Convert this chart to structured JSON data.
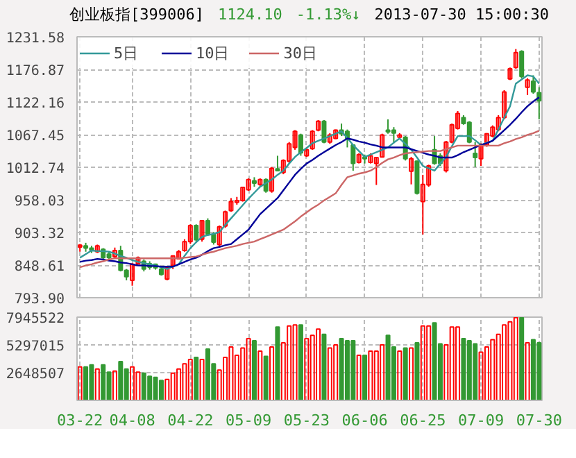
{
  "chart_data": [
    {
      "type": "candlestick",
      "title": "创业板指[399006]",
      "annotations": [
        "1124.10",
        "-1.13%↓",
        "2013-07-30 15:00:30"
      ],
      "categories": [
        null,
        null,
        null,
        null,
        null,
        null,
        null,
        null,
        null,
        null,
        null,
        null,
        null,
        null,
        null,
        null,
        null,
        null,
        null,
        null,
        null,
        null,
        null,
        null,
        null,
        null,
        null,
        null,
        null,
        null,
        null,
        null,
        null,
        null,
        null,
        null,
        null,
        null,
        null,
        null,
        null,
        null,
        null,
        null,
        null,
        null,
        null,
        null,
        null,
        null,
        null,
        null,
        null,
        null,
        null,
        null,
        null,
        null,
        null,
        null,
        null,
        null,
        null,
        null,
        null,
        null,
        null,
        null,
        null,
        null,
        null,
        null,
        null,
        null,
        null,
        null,
        null,
        null,
        null,
        null
      ],
      "ohlc": [
        [
          879,
          884,
          871,
          882
        ],
        [
          881,
          886,
          871,
          877
        ],
        [
          877,
          881,
          869,
          874
        ],
        [
          871,
          883,
          869,
          881
        ],
        [
          875,
          877,
          858,
          861
        ],
        [
          867,
          871,
          858,
          861
        ],
        [
          863,
          878,
          861,
          873
        ],
        [
          873,
          881,
          838,
          840
        ],
        [
          840,
          842,
          823,
          829
        ],
        [
          823,
          852,
          814,
          850
        ],
        [
          851,
          863,
          850,
          861
        ],
        [
          855,
          858,
          838,
          842
        ],
        [
          851,
          855,
          841,
          845
        ],
        [
          850,
          851,
          841,
          844
        ],
        [
          842,
          845,
          831,
          833
        ],
        [
          825,
          846,
          823,
          845
        ],
        [
          848,
          865,
          842,
          864
        ],
        [
          859,
          874,
          858,
          871
        ],
        [
          873,
          892,
          871,
          888
        ],
        [
          888,
          917,
          884,
          915
        ],
        [
          915,
          917,
          888,
          891
        ],
        [
          892,
          924,
          888,
          923
        ],
        [
          923,
          927,
          898,
          900
        ],
        [
          900,
          904,
          883,
          887
        ],
        [
          883,
          915,
          879,
          913
        ],
        [
          914,
          940,
          911,
          938
        ],
        [
          940,
          961,
          938,
          955
        ],
        [
          954,
          963,
          950,
          957
        ],
        [
          957,
          980,
          955,
          979
        ],
        [
          975,
          994,
          973,
          992
        ],
        [
          990,
          996,
          980,
          986
        ],
        [
          984,
          994,
          980,
          992
        ],
        [
          992,
          994,
          970,
          973
        ],
        [
          973,
          1013,
          970,
          1011
        ],
        [
          1010,
          1032,
          1006,
          1007
        ],
        [
          1004,
          1026,
          1001,
          1024
        ],
        [
          1023,
          1055,
          1020,
          1052
        ],
        [
          1046,
          1075,
          1042,
          1073
        ],
        [
          1067,
          1069,
          1032,
          1037
        ],
        [
          1032,
          1046,
          1030,
          1042
        ],
        [
          1044,
          1075,
          1042,
          1073
        ],
        [
          1075,
          1092,
          1073,
          1090
        ],
        [
          1090,
          1092,
          1053,
          1055
        ],
        [
          1055,
          1070,
          1052,
          1067
        ],
        [
          1061,
          1076,
          1060,
          1075
        ],
        [
          1075,
          1086,
          1065,
          1069
        ],
        [
          1073,
          1076,
          1046,
          1061
        ],
        [
          1050,
          1051,
          1007,
          1019
        ],
        [
          1021,
          1036,
          1019,
          1034
        ],
        [
          1030,
          1034,
          1019,
          1027
        ],
        [
          1021,
          1036,
          1019,
          1032
        ],
        [
          1019,
          1030,
          983,
          1029
        ],
        [
          1030,
          1069,
          1029,
          1067
        ],
        [
          1075,
          1093,
          1069,
          1072
        ],
        [
          1075,
          1080,
          1053,
          1070
        ],
        [
          1063,
          1070,
          1060,
          1067
        ],
        [
          1063,
          1065,
          1024,
          1027
        ],
        [
          1006,
          1030,
          984,
          1027
        ],
        [
          1023,
          1024,
          967,
          969
        ],
        [
          955,
          1000,
          900,
          984
        ],
        [
          983,
          1017,
          980,
          1015
        ],
        [
          1042,
          1065,
          1017,
          1019
        ],
        [
          1032,
          1036,
          1015,
          1019
        ],
        [
          1007,
          1057,
          1004,
          1055
        ],
        [
          1055,
          1086,
          1053,
          1084
        ],
        [
          1078,
          1107,
          1076,
          1103
        ],
        [
          1096,
          1100,
          1084,
          1086
        ],
        [
          1088,
          1090,
          1053,
          1055
        ],
        [
          1036,
          1055,
          1013,
          1029
        ],
        [
          1027,
          1053,
          1015,
          1050
        ],
        [
          1050,
          1070,
          1047,
          1069
        ],
        [
          1065,
          1083,
          1063,
          1080
        ],
        [
          1076,
          1100,
          1073,
          1096
        ],
        [
          1096,
          1142,
          1093,
          1139
        ],
        [
          1161,
          1180,
          1159,
          1178
        ],
        [
          1180,
          1211,
          1178,
          1205
        ],
        [
          1207,
          1209,
          1162,
          1165
        ],
        [
          1147,
          1162,
          1134,
          1159
        ],
        [
          1157,
          1167,
          1136,
          1139
        ],
        [
          1138,
          1147,
          1093,
          1124.1
        ]
      ],
      "series": [
        {
          "name": "5日",
          "type": "line",
          "color": "#339999",
          "values": [
            861,
            867,
            873,
            872,
            872,
            871,
            868,
            864,
            861,
            857,
            854,
            852,
            850,
            848,
            845,
            842,
            846,
            850,
            864,
            877,
            887,
            896,
            899,
            901,
            904,
            916,
            927,
            938,
            949,
            960,
            970,
            980,
            986,
            992,
            1000,
            1007,
            1019,
            1030,
            1038,
            1045,
            1053,
            1057,
            1061,
            1065,
            1069,
            1073,
            1062,
            1050,
            1040,
            1030,
            1034,
            1038,
            1042,
            1046,
            1054,
            1061,
            1052,
            1042,
            1029,
            1015,
            1011,
            1007,
            1019,
            1030,
            1048,
            1065,
            1065,
            1065,
            1058,
            1050,
            1054,
            1057,
            1076,
            1096,
            1115,
            1153,
            1160,
            1167,
            1165,
            1153
          ]
        },
        {
          "name": "10日",
          "type": "line",
          "color": "#000099",
          "values": [
            854,
            856,
            857,
            859,
            858,
            856,
            855,
            853,
            852,
            850,
            848,
            848,
            847,
            847,
            846,
            846,
            846,
            850,
            854,
            858,
            861,
            866,
            872,
            877,
            879,
            882,
            884,
            892,
            900,
            908,
            921,
            934,
            943,
            952,
            961,
            974,
            987,
            1000,
            1010,
            1019,
            1025,
            1032,
            1038,
            1044,
            1050,
            1055,
            1061,
            1059,
            1056,
            1054,
            1051,
            1049,
            1046,
            1046,
            1046,
            1046,
            1046,
            1043,
            1040,
            1037,
            1034,
            1032,
            1029,
            1029,
            1029,
            1033,
            1038,
            1042,
            1046,
            1050,
            1053,
            1057,
            1066,
            1075,
            1084,
            1094,
            1105,
            1115,
            1123,
            1130
          ]
        },
        {
          "name": "30日",
          "type": "line",
          "color": "#cc6666",
          "values": [
            845,
            848,
            850,
            853,
            855,
            858,
            860,
            860,
            860,
            860,
            860,
            860,
            860,
            860,
            860,
            860,
            860,
            860,
            861,
            862,
            863,
            866,
            869,
            871,
            874,
            877,
            879,
            881,
            884,
            886,
            888,
            892,
            896,
            900,
            904,
            908,
            915,
            922,
            930,
            937,
            944,
            950,
            957,
            963,
            969,
            983,
            996,
            999,
            1002,
            1004,
            1007,
            1013,
            1020,
            1026,
            1029,
            1033,
            1036,
            1037,
            1038,
            1039,
            1040,
            1040,
            1040,
            1043,
            1046,
            1049,
            1049,
            1049,
            1049,
            1049,
            1049,
            1049,
            1049,
            1053,
            1056,
            1060,
            1063,
            1067,
            1070,
            1074
          ]
        }
      ],
      "ylim": [
        793.9,
        1231.58
      ],
      "yticks": [
        {
          "value": 793.9,
          "label": "793.90"
        },
        848.61,
        903.32,
        958.03,
        1012.74,
        1067.45,
        1122.16,
        1176.87,
        1231.58
      ],
      "grid": true,
      "legend": "top left",
      "tick_labels": "y"
    },
    {
      "type": "bar",
      "categories": [
        "03-22",
        null,
        null,
        null,
        null,
        null,
        null,
        null,
        null,
        "04-08",
        null,
        null,
        null,
        null,
        null,
        null,
        null,
        null,
        null,
        "04-22",
        null,
        null,
        null,
        null,
        null,
        null,
        null,
        null,
        null,
        "05-09",
        null,
        null,
        null,
        null,
        null,
        null,
        null,
        null,
        null,
        "05-23",
        null,
        null,
        null,
        null,
        null,
        null,
        null,
        null,
        null,
        "06-06",
        null,
        null,
        null,
        null,
        null,
        null,
        null,
        null,
        null,
        "06-25",
        null,
        null,
        null,
        null,
        null,
        null,
        null,
        null,
        null,
        "07-09",
        null,
        null,
        null,
        null,
        null,
        null,
        null,
        null,
        null,
        "07-30"
      ],
      "values": [
        3200000,
        3200000,
        3400000,
        3000000,
        3400000,
        2700000,
        2800000,
        3700000,
        3000000,
        3200000,
        2700000,
        2600000,
        2300000,
        2200000,
        1900000,
        2000000,
        2600000,
        3000000,
        3500000,
        3900000,
        4100000,
        3900000,
        4900000,
        3500000,
        2900000,
        4100000,
        5100000,
        4300000,
        5000000,
        5900000,
        5700000,
        4700000,
        4200000,
        5100000,
        7000000,
        5500000,
        7100000,
        7200000,
        7200000,
        5900000,
        6200000,
        6800000,
        6300000,
        5000000,
        5300000,
        5900000,
        5700000,
        5700000,
        4300000,
        4300000,
        4700000,
        4700000,
        5300000,
        6200000,
        5100000,
        4700000,
        5000000,
        5000000,
        5500000,
        7100000,
        7100000,
        7400000,
        5400000,
        5300000,
        7000000,
        7000000,
        5900000,
        5700000,
        5400000,
        4600000,
        5100000,
        5800000,
        6300000,
        7200000,
        7500000,
        7900000,
        7900000,
        5500000,
        5800000,
        5500000
      ],
      "colors": [
        "#ff0000",
        "#339933",
        "#339933",
        "#ff0000",
        "#339933",
        "#339933",
        "#ff0000",
        "#339933",
        "#339933",
        "#ff0000",
        "#ff0000",
        "#339933",
        "#339933",
        "#339933",
        "#339933",
        "#ff0000",
        "#ff0000",
        "#ff0000",
        "#ff0000",
        "#ff0000",
        "#339933",
        "#ff0000",
        "#339933",
        "#339933",
        "#ff0000",
        "#ff0000",
        "#ff0000",
        "#ff0000",
        "#ff0000",
        "#ff0000",
        "#339933",
        "#ff0000",
        "#339933",
        "#ff0000",
        "#339933",
        "#ff0000",
        "#ff0000",
        "#ff0000",
        "#339933",
        "#ff0000",
        "#ff0000",
        "#ff0000",
        "#339933",
        "#ff0000",
        "#ff0000",
        "#339933",
        "#339933",
        "#339933",
        "#ff0000",
        "#339933",
        "#ff0000",
        "#ff0000",
        "#ff0000",
        "#339933",
        "#339933",
        "#ff0000",
        "#339933",
        "#ff0000",
        "#339933",
        "#ff0000",
        "#ff0000",
        "#339933",
        "#339933",
        "#ff0000",
        "#ff0000",
        "#ff0000",
        "#339933",
        "#339933",
        "#339933",
        "#ff0000",
        "#ff0000",
        "#ff0000",
        "#ff0000",
        "#ff0000",
        "#ff0000",
        "#ff0000",
        "#339933",
        "#ff0000",
        "#339933",
        "#339933"
      ],
      "ylim": [
        0,
        7945522
      ],
      "yticks": [
        2648507,
        5297015,
        7945522
      ],
      "grid": true
    }
  ]
}
